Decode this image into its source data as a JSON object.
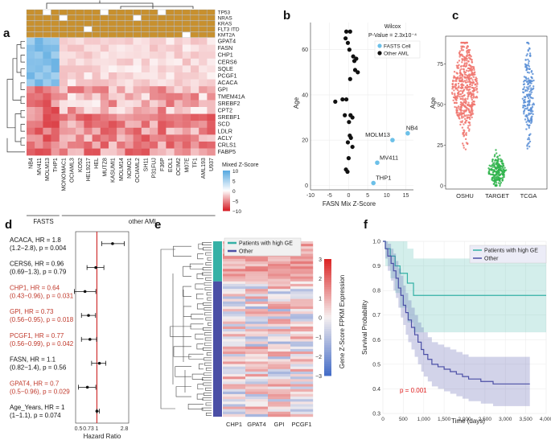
{
  "figure": {
    "panel_labels": {
      "a": "a",
      "b": "b",
      "c": "c",
      "d": "d",
      "e": "e",
      "f": "f"
    },
    "colors": {
      "mutation": "#c8902e",
      "high_ge": "#35b1a6",
      "other": "#4b4fa6",
      "hr_sig": "#c0392b",
      "oshu": "#f0766e",
      "target": "#2eb34a",
      "tcga": "#5b8fd6"
    }
  },
  "panel_a": {
    "mutation_rows": [
      "TP53",
      "NRAS",
      "KRAS",
      "FLT3 ITD",
      "KMT2A"
    ],
    "genes": [
      "GPAT4",
      "FASN",
      "CHP1",
      "CERS6",
      "SQLE",
      "PCGF1",
      "ACACA",
      "GPI",
      "TMEM41A",
      "SREBF2",
      "CPT2",
      "SREBF1",
      "SCD",
      "LDLR",
      "ACLY",
      "CRLS1",
      "FABP5"
    ],
    "cell_lines": [
      "NB4",
      "MV411",
      "MOLM13",
      "THP1",
      "MONOMAC1",
      "OCIAML3",
      "KO52",
      "HEL9217",
      "HEL",
      "MUTZ8",
      "KASUMI1",
      "MOLM14",
      "NOMO1",
      "OCIAML2",
      "SH11",
      "P31FUJ",
      "F36P",
      "EOL1",
      "OCIM2",
      "M07E",
      "TF1",
      "AML193",
      "U937"
    ],
    "group_fasts": "FASTS",
    "group_other": "other AML",
    "legend_title": "Mixed Z-Score",
    "legend_ticks": [
      "10",
      "5",
      "0",
      "−5",
      "−10"
    ]
  },
  "panel_b": {
    "chart_data": {
      "type": "scatter",
      "xlabel": "FASN Mix Z-Score",
      "ylabel": "Age",
      "xlim": [
        -10,
        17
      ],
      "ylim": [
        -2,
        72
      ],
      "xticks": [
        "-10",
        "-5",
        "0",
        "5",
        "10",
        "15"
      ],
      "yticks": [
        "0",
        "20",
        "40",
        "60"
      ],
      "annotation": "Wilcox",
      "pvalue": "P-Value = 2.3x10⁻⁴",
      "legend": [
        "FASTS Cell",
        "Other AML"
      ],
      "fasts_points": [
        {
          "x": 15.5,
          "y": 23,
          "label": "NB4"
        },
        {
          "x": 11.5,
          "y": 20,
          "label": "MOLM13"
        },
        {
          "x": 7.5,
          "y": 10,
          "label": "MV411"
        },
        {
          "x": 6.5,
          "y": 1,
          "label": "THP1"
        }
      ],
      "other_points": [
        [
          -0.6,
          68
        ],
        [
          0.4,
          68
        ],
        [
          -0.8,
          65
        ],
        [
          -0.2,
          63
        ],
        [
          0.2,
          60
        ],
        [
          1.2,
          57
        ],
        [
          2.0,
          56
        ],
        [
          1.5,
          55
        ],
        [
          1.7,
          51
        ],
        [
          2.4,
          50
        ],
        [
          0.4,
          47
        ],
        [
          -0.6,
          38
        ],
        [
          -3.5,
          37
        ],
        [
          -1.0,
          31
        ],
        [
          0.5,
          31
        ],
        [
          0.1,
          28
        ],
        [
          0.3,
          22
        ],
        [
          0.6,
          21
        ],
        [
          -0.2,
          19
        ],
        [
          1.0,
          17
        ],
        [
          0.0,
          12
        ],
        [
          -0.7,
          7
        ],
        [
          -0.3,
          6
        ],
        [
          -1.6,
          38
        ],
        [
          1.0,
          30
        ]
      ]
    }
  },
  "panel_c": {
    "chart_data": {
      "type": "scatter",
      "ylabel": "Age",
      "ylim": [
        -2,
        92
      ],
      "yticks": [
        "0",
        "25",
        "50",
        "75"
      ],
      "categories": [
        "OSHU",
        "TARGET",
        "TCGA"
      ]
    }
  },
  "panel_d": {
    "chart_data": {
      "type": "scatter",
      "xlabel": "Hazard Ratio",
      "xticks": [
        "0.5",
        "0.73",
        "1",
        "2.8"
      ],
      "rows": [
        {
          "line1": "ACACA, HR = 1.8",
          "line2": "(1.2−2.8), p = 0.004",
          "hr": 1.8,
          "lo": 1.2,
          "hi": 2.8,
          "sig": false
        },
        {
          "line1": "CERS6, HR = 0.96",
          "line2": "(0.69−1.3), p = 0.79",
          "hr": 0.96,
          "lo": 0.69,
          "hi": 1.3,
          "sig": false
        },
        {
          "line1": "CHP1, HR = 0.64",
          "line2": "(0.43−0.96), p = 0.031",
          "hr": 0.64,
          "lo": 0.43,
          "hi": 0.96,
          "sig": true
        },
        {
          "line1": "GPI, HR = 0.73",
          "line2": "(0.56−0.95), p = 0.018",
          "hr": 0.73,
          "lo": 0.56,
          "hi": 0.95,
          "sig": true
        },
        {
          "line1": "PCGF1, HR = 0.77",
          "line2": "(0.56−0.99), p = 0.042",
          "hr": 0.77,
          "lo": 0.56,
          "hi": 0.99,
          "sig": true
        },
        {
          "line1": "FASN, HR = 1.1",
          "line2": "(0.82−1.4), p = 0.56",
          "hr": 1.1,
          "lo": 0.82,
          "hi": 1.4,
          "sig": false
        },
        {
          "line1": "GPAT4, HR = 0.7",
          "line2": "(0.5−0.96), p = 0.029",
          "hr": 0.7,
          "lo": 0.5,
          "hi": 0.96,
          "sig": true
        },
        {
          "line1": "Age_Years, HR = 1",
          "line2": "(1−1.1), p = 0.074",
          "hr": 1.0,
          "lo": 1.0,
          "hi": 1.1,
          "sig": false
        }
      ]
    }
  },
  "panel_e": {
    "legend": [
      "Patients with high GE",
      "Other"
    ],
    "columns": [
      "CHP1",
      "GPAT4",
      "GPI",
      "PCGF1"
    ],
    "colorbar_title": "Gene Z-Score FPKM Expression",
    "colorbar_ticks": [
      "3",
      "2",
      "1",
      "0",
      "−1",
      "−2",
      "−3"
    ]
  },
  "panel_f": {
    "chart_data": {
      "type": "line",
      "xlabel": "Time (days)",
      "ylabel": "Survival Probability",
      "xlim": [
        0,
        4000
      ],
      "ylim": [
        0.3,
        1.0
      ],
      "xticks": [
        "0",
        "500",
        "1,000",
        "1,500",
        "2,000",
        "2,500",
        "3,000",
        "3,500",
        "4,000"
      ],
      "yticks": [
        "0.3",
        "0.4",
        "0.5",
        "0.6",
        "0.7",
        "0.8",
        "0.9",
        "1.0"
      ],
      "legend": [
        "Patients with high GE",
        "Other"
      ],
      "pvalue": "p = 0.001",
      "series": [
        {
          "name": "Patients with high GE",
          "x": [
            0,
            60,
            180,
            300,
            420,
            600,
            750,
            4000
          ],
          "y": [
            1.0,
            0.97,
            0.94,
            0.9,
            0.87,
            0.83,
            0.78,
            0.78
          ],
          "upper": [
            1.0,
            1.0,
            1.0,
            1.0,
            1.0,
            0.97,
            0.93,
            0.93
          ],
          "lower": [
            1.0,
            0.9,
            0.85,
            0.79,
            0.73,
            0.67,
            0.63,
            0.63
          ]
        },
        {
          "name": "Other",
          "x": [
            0,
            60,
            120,
            200,
            260,
            320,
            380,
            440,
            500,
            560,
            620,
            700,
            780,
            860,
            940,
            1000,
            1100,
            1200,
            1350,
            1500,
            1650,
            1800,
            1950,
            2100,
            2400,
            2700,
            3100,
            3600
          ],
          "y": [
            1.0,
            0.97,
            0.94,
            0.91,
            0.88,
            0.85,
            0.81,
            0.78,
            0.74,
            0.71,
            0.68,
            0.65,
            0.62,
            0.59,
            0.56,
            0.54,
            0.52,
            0.5,
            0.49,
            0.48,
            0.47,
            0.46,
            0.45,
            0.44,
            0.43,
            0.42,
            0.42,
            0.42
          ],
          "upper": [
            1.0,
            1.0,
            0.99,
            0.97,
            0.95,
            0.92,
            0.89,
            0.86,
            0.82,
            0.79,
            0.76,
            0.73,
            0.7,
            0.67,
            0.65,
            0.63,
            0.61,
            0.59,
            0.58,
            0.57,
            0.56,
            0.55,
            0.54,
            0.53,
            0.53,
            0.53,
            0.53,
            0.53
          ],
          "lower": [
            1.0,
            0.93,
            0.88,
            0.84,
            0.8,
            0.77,
            0.73,
            0.69,
            0.66,
            0.62,
            0.59,
            0.56,
            0.53,
            0.5,
            0.47,
            0.45,
            0.43,
            0.41,
            0.4,
            0.39,
            0.38,
            0.37,
            0.36,
            0.35,
            0.34,
            0.33,
            0.33,
            0.33
          ]
        }
      ]
    }
  }
}
